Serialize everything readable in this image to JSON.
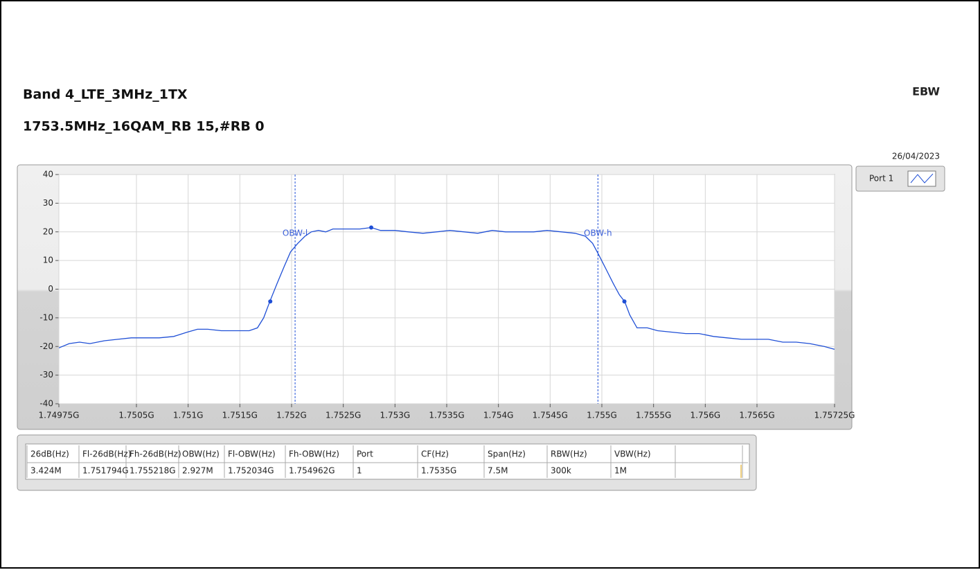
{
  "header": {
    "title": "Band 4_LTE_3MHz_1TX",
    "subtitle": "1753.5MHz_16QAM_RB 15,#RB 0",
    "mode": "EBW",
    "date": "26/04/2023"
  },
  "chart_data": {
    "type": "line",
    "x": [
      1.74975,
      1.74985,
      1.74995,
      1.75005,
      1.75019,
      1.75032,
      1.75045,
      1.75059,
      1.75072,
      1.75086,
      1.75099,
      1.75109,
      1.75119,
      1.75132,
      1.75146,
      1.75159,
      1.75167,
      1.75173,
      1.75179,
      1.75186,
      1.75193,
      1.75199,
      1.75206,
      1.75213,
      1.75219,
      1.75226,
      1.75233,
      1.7524,
      1.75253,
      1.75266,
      1.75277,
      1.75286,
      1.753,
      1.75313,
      1.75327,
      1.7534,
      1.75353,
      1.75367,
      1.7538,
      1.75394,
      1.75407,
      1.7542,
      1.75434,
      1.75447,
      1.75461,
      1.75474,
      1.75484,
      1.75491,
      1.75497,
      1.75504,
      1.75511,
      1.75517,
      1.75522,
      1.75527,
      1.75534,
      1.75544,
      1.75554,
      1.75568,
      1.75581,
      1.75594,
      1.75608,
      1.75621,
      1.75635,
      1.75648,
      1.75661,
      1.75675,
      1.75688,
      1.75701,
      1.75715,
      1.75725
    ],
    "series": [
      {
        "name": "Port 1",
        "color": "#1f4fd6",
        "values": [
          -20.5,
          -19,
          -18.5,
          -19,
          -18,
          -17.5,
          -17,
          -17,
          -17,
          -16.5,
          -15,
          -14,
          -14,
          -14.5,
          -14.5,
          -14.5,
          -13.5,
          -10,
          -4.3,
          2,
          8,
          13,
          16,
          18.5,
          20,
          20.5,
          20,
          21,
          21,
          21,
          21.5,
          20.5,
          20.5,
          20,
          19.5,
          20,
          20.5,
          20,
          19.5,
          20.5,
          20,
          20,
          20,
          20.5,
          20,
          19.5,
          18.5,
          16,
          12,
          7,
          2,
          -2,
          -4.3,
          -9,
          -13.5,
          -13.5,
          -14.5,
          -15,
          -15.5,
          -15.5,
          -16.5,
          -17,
          -17.5,
          -17.5,
          -17.5,
          -18.5,
          -18.5,
          -19,
          -20,
          -21
        ]
      }
    ],
    "points": {
      "x": [
        1.751794,
        1.75277,
        1.755218
      ],
      "y": [
        -4.3,
        21.5,
        -4.3
      ]
    },
    "markers": [
      {
        "label": "OBW-l",
        "x": 1.752034
      },
      {
        "label": "OBW-h",
        "x": 1.754962
      }
    ],
    "xlim": [
      1.74975,
      1.75725
    ],
    "xticks": [
      {
        "value": 1.74975,
        "label": "1.74975G"
      },
      {
        "value": 1.7505,
        "label": "1.7505G"
      },
      {
        "value": 1.751,
        "label": "1.751G"
      },
      {
        "value": 1.7515,
        "label": "1.7515G"
      },
      {
        "value": 1.752,
        "label": "1.752G"
      },
      {
        "value": 1.7525,
        "label": "1.7525G"
      },
      {
        "value": 1.753,
        "label": "1.753G"
      },
      {
        "value": 1.7535,
        "label": "1.7535G"
      },
      {
        "value": 1.754,
        "label": "1.754G"
      },
      {
        "value": 1.7545,
        "label": "1.7545G"
      },
      {
        "value": 1.755,
        "label": "1.755G"
      },
      {
        "value": 1.7555,
        "label": "1.7555G"
      },
      {
        "value": 1.756,
        "label": "1.756G"
      },
      {
        "value": 1.7565,
        "label": "1.7565G"
      },
      {
        "value": 1.75725,
        "label": "1.75725G"
      }
    ],
    "ylim": [
      -40,
      40
    ],
    "yticks": [
      -40,
      -30,
      -20,
      -10,
      0,
      10,
      20,
      30,
      40
    ],
    "grid": true,
    "legend": "right"
  },
  "table": {
    "columns": [
      "26dB(Hz)",
      "Fl-26dB(Hz)",
      "Fh-26dB(Hz)",
      "OBW(Hz)",
      "Fl-OBW(Hz)",
      "Fh-OBW(Hz)",
      "Port",
      "CF(Hz)",
      "Span(Hz)",
      "RBW(Hz)",
      "VBW(Hz)"
    ],
    "rows": [
      [
        "3.424M",
        "1.751794G",
        "1.755218G",
        "2.927M",
        "1.752034G",
        "1.754962G",
        "1",
        "1.7535G",
        "7.5M",
        "300k",
        "1M"
      ]
    ]
  }
}
